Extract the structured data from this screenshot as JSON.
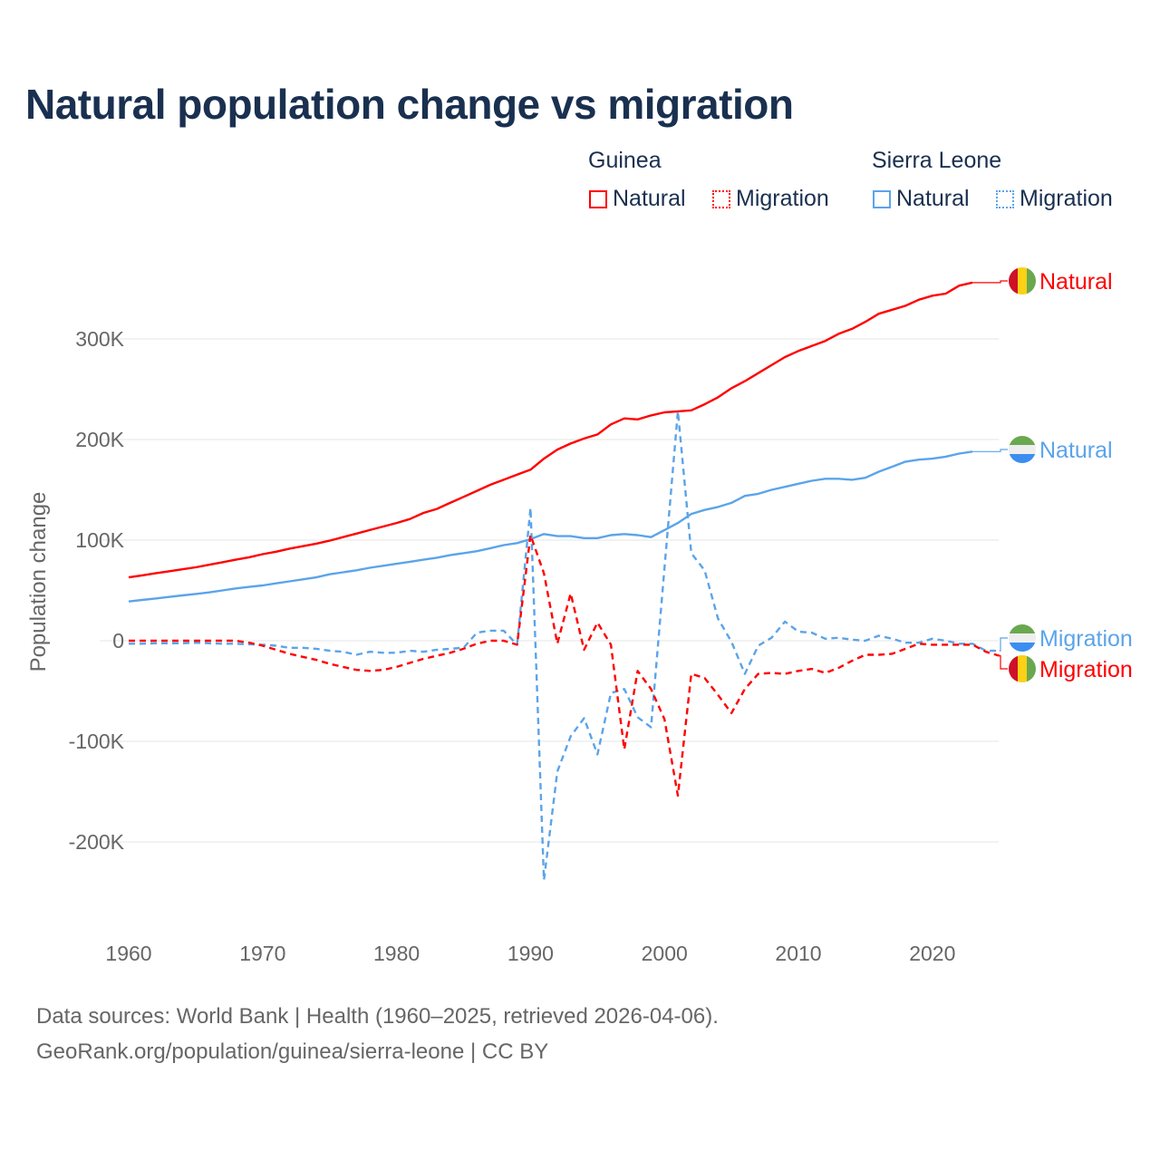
{
  "chart_data": {
    "type": "line",
    "title": "Natural population change vs migration",
    "ylabel": "Population change",
    "xlabel": "",
    "xlim": [
      1960,
      2025
    ],
    "ylim": [
      -250000,
      350000
    ],
    "x_ticks": [
      1960,
      1970,
      1980,
      1990,
      2000,
      2010,
      2020
    ],
    "y_ticks": [
      300000,
      200000,
      100000,
      0,
      -100000,
      -200000
    ],
    "y_tick_labels": [
      "300K",
      "200K",
      "100K",
      "0",
      "-100K",
      "-200K"
    ],
    "grid": true,
    "legend": {
      "placement": "top-right",
      "groups": [
        {
          "name": "Guinea",
          "items": [
            "Natural",
            "Migration"
          ]
        },
        {
          "name": "Sierra Leone",
          "items": [
            "Natural",
            "Migration"
          ]
        }
      ]
    },
    "series": [
      {
        "name": "Guinea Natural",
        "country": "Guinea",
        "kind": "Natural",
        "label": "Natural",
        "color": "#ff0000",
        "dashed": false,
        "start": 1960,
        "values": [
          63,
          65,
          67,
          69,
          71,
          73,
          75.5,
          78,
          80.5,
          83,
          86,
          88.5,
          91.5,
          94,
          96.5,
          99.5,
          103,
          106.5,
          110,
          113.5,
          117,
          121,
          127,
          131,
          137,
          143,
          149,
          155,
          160,
          165,
          170,
          181,
          190,
          196,
          201,
          205,
          215,
          221,
          220,
          224,
          227,
          228,
          229,
          235,
          242,
          251,
          258,
          266,
          274,
          282,
          288,
          293,
          298,
          305,
          310,
          317,
          325,
          329,
          333,
          339,
          343,
          345,
          353,
          356
        ]
      },
      {
        "name": "Sierra Leone Natural",
        "country": "Sierra Leone",
        "kind": "Natural",
        "label": "Natural",
        "color": "#5ba4ea",
        "dashed": false,
        "start": 1960,
        "values": [
          39,
          40.5,
          42,
          43.5,
          45,
          46.5,
          48,
          50,
          52,
          53.5,
          55,
          57,
          59,
          61,
          63,
          66,
          68,
          70,
          72.5,
          74.5,
          76.5,
          78.5,
          80.5,
          82.5,
          85,
          87,
          89,
          92,
          95,
          97,
          101,
          106,
          104,
          104,
          102,
          102,
          105,
          106,
          105,
          103,
          110,
          117,
          126,
          130,
          133,
          137,
          144,
          146,
          150,
          153,
          156,
          159,
          161,
          161,
          160,
          162,
          168,
          173,
          178,
          180,
          181,
          183,
          186,
          188
        ]
      },
      {
        "name": "Sierra Leone Migration",
        "country": "Sierra Leone",
        "kind": "Migration",
        "label": "Migration",
        "color": "#5ba4ea",
        "dashed": true,
        "start": 1960,
        "values": [
          -3,
          -3,
          -2.5,
          -2.5,
          -2.5,
          -2,
          -2.5,
          -3,
          -3,
          -3.5,
          -4,
          -5,
          -7,
          -7,
          -8,
          -10,
          -11,
          -14,
          -11,
          -12,
          -12,
          -10,
          -11,
          -9,
          -8,
          -7,
          8,
          10,
          10,
          -4,
          132,
          -238,
          -130,
          -95,
          -77,
          -113,
          -52,
          -48,
          -76,
          -86,
          72,
          228,
          87,
          70,
          22,
          -1,
          -33,
          -5,
          3,
          19,
          9,
          8,
          2,
          3,
          1,
          0,
          5,
          2,
          -2,
          -2,
          2,
          0,
          -3,
          -3,
          -10,
          -10
        ]
      },
      {
        "name": "Guinea Migration",
        "country": "Guinea",
        "kind": "Migration",
        "label": "Migration",
        "color": "#ff0000",
        "dashed": true,
        "start": 1960,
        "values": [
          0,
          0,
          0,
          0,
          0,
          0,
          0,
          0,
          0,
          -2,
          -5,
          -9,
          -13,
          -16,
          -19,
          -23,
          -26,
          -29,
          -30,
          -29,
          -26,
          -22,
          -18,
          -15,
          -12,
          -8,
          -3,
          0,
          0,
          -4,
          105,
          67,
          -3,
          47,
          -9,
          18,
          -4,
          -108,
          -30,
          -48,
          -78,
          -154,
          -33,
          -37,
          -54,
          -72,
          -48,
          -33,
          -32,
          -33,
          -30,
          -28,
          -32,
          -27,
          -20,
          -14,
          -14,
          -13,
          -8,
          -3,
          -4,
          -4,
          -4,
          -4,
          -11,
          -15
        ]
      }
    ]
  },
  "source": {
    "line1": "Data sources: World Bank | Health (1960–2025, retrieved 2026-04-06).",
    "line2": "GeoRank.org/population/guinea/sierra-leone | CC BY"
  },
  "flags": {
    "guinea": [
      "#ce1126",
      "#fcd116",
      "#6aa84f"
    ],
    "sierra_leone": [
      "#6aa84f",
      "#eeeeee",
      "#3a8ef0"
    ]
  }
}
